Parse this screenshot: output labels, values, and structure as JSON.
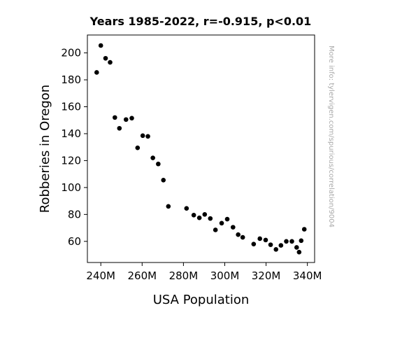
{
  "chart_data": {
    "type": "scatter",
    "title": "Years 1985-2022, r=-0.915, p<0.01",
    "xlabel": "USA Population",
    "ylabel": "Robberies in Oregon",
    "side_note": "More info: tylervigen.com/spurious/correlation/9004",
    "xlim": [
      233.5,
      343.5
    ],
    "ylim": [
      44.3,
      213.3
    ],
    "x_ticks": [
      {
        "value": 240,
        "label": "240M"
      },
      {
        "value": 260,
        "label": "260M"
      },
      {
        "value": 280,
        "label": "280M"
      },
      {
        "value": 300,
        "label": "300M"
      },
      {
        "value": 320,
        "label": "320M"
      },
      {
        "value": 340,
        "label": "340M"
      }
    ],
    "y_ticks": [
      {
        "value": 60,
        "label": "60"
      },
      {
        "value": 80,
        "label": "80"
      },
      {
        "value": 100,
        "label": "100"
      },
      {
        "value": 120,
        "label": "120"
      },
      {
        "value": 140,
        "label": "140"
      },
      {
        "value": 160,
        "label": "160"
      },
      {
        "value": 180,
        "label": "180"
      },
      {
        "value": 200,
        "label": "200"
      }
    ],
    "grid": false,
    "marker_color": "#000000",
    "points": [
      {
        "x": 238.0,
        "y": 185.5
      },
      {
        "x": 240.0,
        "y": 205.5
      },
      {
        "x": 242.3,
        "y": 196.0
      },
      {
        "x": 244.5,
        "y": 193.0
      },
      {
        "x": 246.8,
        "y": 152.0
      },
      {
        "x": 249.0,
        "y": 144.0
      },
      {
        "x": 252.2,
        "y": 150.5
      },
      {
        "x": 255.0,
        "y": 151.5
      },
      {
        "x": 257.8,
        "y": 129.5
      },
      {
        "x": 260.3,
        "y": 138.5
      },
      {
        "x": 262.8,
        "y": 138.0
      },
      {
        "x": 265.2,
        "y": 122.0
      },
      {
        "x": 267.8,
        "y": 117.5
      },
      {
        "x": 270.3,
        "y": 105.5
      },
      {
        "x": 272.7,
        "y": 86.0
      },
      {
        "x": 281.5,
        "y": 84.5
      },
      {
        "x": 285.0,
        "y": 79.5
      },
      {
        "x": 287.7,
        "y": 77.5
      },
      {
        "x": 290.3,
        "y": 80.0
      },
      {
        "x": 293.0,
        "y": 77.0
      },
      {
        "x": 295.5,
        "y": 68.5
      },
      {
        "x": 298.5,
        "y": 73.5
      },
      {
        "x": 301.2,
        "y": 76.5
      },
      {
        "x": 304.0,
        "y": 70.5
      },
      {
        "x": 306.5,
        "y": 65.0
      },
      {
        "x": 308.7,
        "y": 63.0
      },
      {
        "x": 314.0,
        "y": 58.0
      },
      {
        "x": 317.0,
        "y": 62.0
      },
      {
        "x": 319.8,
        "y": 61.0
      },
      {
        "x": 322.2,
        "y": 57.5
      },
      {
        "x": 324.8,
        "y": 54.0
      },
      {
        "x": 327.2,
        "y": 57.0
      },
      {
        "x": 329.8,
        "y": 60.0
      },
      {
        "x": 332.5,
        "y": 60.0
      },
      {
        "x": 334.8,
        "y": 55.5
      },
      {
        "x": 336.0,
        "y": 52.0
      },
      {
        "x": 337.0,
        "y": 60.5
      },
      {
        "x": 338.5,
        "y": 69.0
      }
    ]
  }
}
